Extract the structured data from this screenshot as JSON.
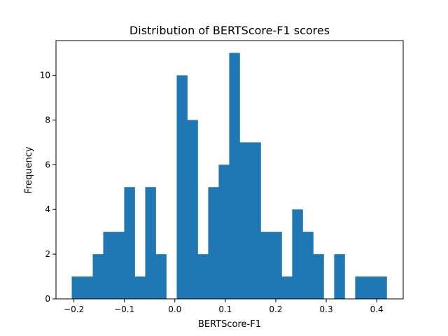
{
  "chart_data": {
    "type": "bar",
    "title": "Distribution of BERTScore-F1 scores",
    "xlabel": "BERTScore-F1",
    "ylabel": "Frequency",
    "xlim": [
      -0.2355,
      0.4525
    ],
    "ylim": [
      0,
      11.55
    ],
    "xticks": [
      -0.2,
      -0.1,
      0.0,
      0.1,
      0.2,
      0.3,
      0.4
    ],
    "xtick_labels": [
      "−0.2",
      "−0.1",
      "0.0",
      "0.1",
      "0.2",
      "0.3",
      "0.4"
    ],
    "yticks": [
      0,
      2,
      4,
      6,
      8,
      10
    ],
    "ytick_labels": [
      "0",
      "2",
      "4",
      "6",
      "8",
      "10"
    ],
    "bin_edges": [
      -0.2043,
      -0.1835,
      -0.1627,
      -0.1419,
      -0.1211,
      -0.1003,
      -0.0795,
      -0.0587,
      -0.0379,
      -0.0171,
      0.0037,
      0.0245,
      0.0453,
      0.0661,
      0.0869,
      0.1077,
      0.1285,
      0.1493,
      0.1701,
      0.1909,
      0.2117,
      0.2325,
      0.2533,
      0.2741,
      0.2949,
      0.3157,
      0.3365,
      0.3573,
      0.3781,
      0.3989,
      0.4197
    ],
    "counts": [
      1,
      1,
      2,
      3,
      3,
      5,
      1,
      5,
      2,
      0,
      10,
      8,
      2,
      5,
      6,
      11,
      7,
      7,
      3,
      3,
      1,
      4,
      3,
      2,
      0,
      2,
      0,
      1,
      1,
      1
    ],
    "bar_color": "#1f77b4",
    "grid": false,
    "legend": "none"
  }
}
